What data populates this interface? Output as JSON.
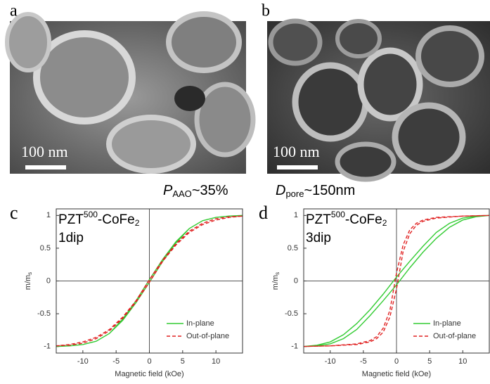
{
  "panels": [
    {
      "label": "a",
      "scale_bar": "100 nm"
    },
    {
      "label": "b",
      "scale_bar": "100 nm"
    }
  ],
  "porosity": {
    "symbol": "P",
    "subscript": "AAO",
    "value": "~35%"
  },
  "pore_diameter": {
    "symbol": "D",
    "subscript": "pore",
    "value": "~150nm"
  },
  "chart_data": [
    {
      "type": "line",
      "panel_label": "c",
      "annotation": {
        "main": "PZT",
        "sup": "500",
        "rest": "-CoFe",
        "sub": "2",
        "line2": "1dip"
      },
      "xlabel": "Magnetic field (kOe)",
      "ylabel": {
        "main": "m/m",
        "sub": "s"
      },
      "xlim": [
        -14,
        14
      ],
      "ylim": [
        -1.1,
        1.1
      ],
      "xticks": [
        -10,
        -5,
        0,
        5,
        10
      ],
      "yticks": [
        -1,
        -0.5,
        0,
        0.5,
        1
      ],
      "legend": "lower right",
      "series": [
        {
          "name": "In-plane",
          "color": "#33cc33",
          "dash": false,
          "x": [
            -14,
            -12,
            -10,
            -8,
            -6,
            -4,
            -2,
            0,
            2,
            4,
            6,
            8,
            10,
            12,
            14,
            14,
            12,
            10,
            8,
            6,
            4,
            2,
            0,
            -2,
            -4,
            -6,
            -8,
            -10,
            -12,
            -14
          ],
          "values": [
            -1,
            -0.99,
            -0.97,
            -0.92,
            -0.8,
            -0.6,
            -0.33,
            -0.02,
            0.3,
            0.58,
            0.8,
            0.92,
            0.97,
            0.99,
            1,
            1,
            0.99,
            0.97,
            0.92,
            0.8,
            0.6,
            0.33,
            0.02,
            -0.3,
            -0.58,
            -0.8,
            -0.92,
            -0.97,
            -0.99,
            -1
          ]
        },
        {
          "name": "Out-of-plane",
          "color": "#e02020",
          "dash": true,
          "x": [
            -14,
            -12,
            -10,
            -8,
            -6,
            -4,
            -2,
            0,
            2,
            4,
            6,
            8,
            10,
            12,
            14,
            14,
            12,
            10,
            8,
            6,
            4,
            2,
            0,
            -2,
            -4,
            -6,
            -8,
            -10,
            -12,
            -14
          ],
          "values": [
            -0.99,
            -0.98,
            -0.95,
            -0.88,
            -0.76,
            -0.57,
            -0.32,
            -0.02,
            0.3,
            0.55,
            0.74,
            0.86,
            0.93,
            0.97,
            0.99,
            0.99,
            0.98,
            0.95,
            0.88,
            0.76,
            0.57,
            0.32,
            0.02,
            -0.3,
            -0.55,
            -0.74,
            -0.86,
            -0.93,
            -0.97,
            -0.99
          ]
        }
      ]
    },
    {
      "type": "line",
      "panel_label": "d",
      "annotation": {
        "main": "PZT",
        "sup": "500",
        "rest": "-CoFe",
        "sub": "2",
        "line2": "3dip"
      },
      "xlabel": "Magnetic field (kOe)",
      "ylabel": {
        "main": "m/m",
        "sub": "s"
      },
      "xlim": [
        -14,
        14
      ],
      "ylim": [
        -1.1,
        1.1
      ],
      "xticks": [
        -10,
        -5,
        0,
        5,
        10
      ],
      "yticks": [
        -1,
        -0.5,
        0,
        0.5,
        1
      ],
      "legend": "lower right",
      "series": [
        {
          "name": "In-plane",
          "color": "#33cc33",
          "dash": false,
          "x": [
            -14,
            -12,
            -10,
            -8,
            -6,
            -4,
            -2,
            0,
            2,
            4,
            6,
            8,
            10,
            12,
            14,
            14,
            12,
            10,
            8,
            6,
            4,
            2,
            0,
            -2,
            -4,
            -6,
            -8,
            -10,
            -12,
            -14
          ],
          "values": [
            -1,
            -0.99,
            -0.96,
            -0.88,
            -0.74,
            -0.53,
            -0.3,
            -0.06,
            0.2,
            0.44,
            0.65,
            0.82,
            0.93,
            0.98,
            1,
            1,
            0.99,
            0.96,
            0.88,
            0.74,
            0.53,
            0.3,
            0.06,
            -0.2,
            -0.44,
            -0.65,
            -0.82,
            -0.93,
            -0.98,
            -1
          ]
        },
        {
          "name": "Out-of-plane",
          "color": "#e02020",
          "dash": true,
          "x": [
            -14,
            -10,
            -6,
            -4,
            -3,
            -2,
            -1,
            0,
            1,
            2,
            3,
            4,
            6,
            10,
            14,
            14,
            10,
            6,
            4,
            3,
            2,
            1,
            0,
            -1,
            -2,
            -3,
            -4,
            -6,
            -10,
            -14
          ],
          "values": [
            -1,
            -0.99,
            -0.97,
            -0.93,
            -0.88,
            -0.78,
            -0.55,
            -0.12,
            0.45,
            0.72,
            0.85,
            0.91,
            0.96,
            0.99,
            1,
            1,
            0.99,
            0.97,
            0.93,
            0.88,
            0.78,
            0.55,
            0.12,
            -0.45,
            -0.72,
            -0.85,
            -0.91,
            -0.96,
            -0.99,
            -1
          ]
        }
      ]
    }
  ]
}
